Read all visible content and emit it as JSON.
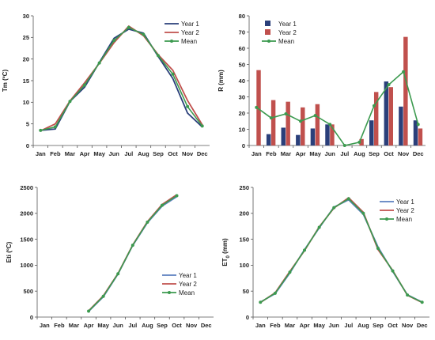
{
  "months": [
    "Jan",
    "Feb",
    "Mar",
    "Apr",
    "May",
    "Jun",
    "Jul",
    "Aug",
    "Sep",
    "Oct",
    "Nov",
    "Dec"
  ],
  "colors": {
    "year1": "#2a3f7a",
    "year2": "#c0504d",
    "mean": "#3c9a4f",
    "year1_light": "#5b7fbf"
  },
  "chart_data": [
    {
      "id": "tm",
      "type": "line",
      "ylabel": "Tm (ºC)",
      "ylim": [
        0,
        30
      ],
      "yticks": [
        0,
        5,
        10,
        15,
        20,
        25,
        30
      ],
      "grid": false,
      "legend": "top-right",
      "categories": [
        "Jan",
        "Feb",
        "Mar",
        "Apr",
        "May",
        "Jun",
        "Jul",
        "Aug",
        "Sep",
        "Oct",
        "Nov",
        "Dec"
      ],
      "series": [
        {
          "name": "Year 1",
          "values": [
            3.5,
            3.8,
            10.2,
            13.5,
            19.2,
            24.8,
            26.9,
            26.0,
            20.6,
            15.5,
            7.5,
            4.3
          ]
        },
        {
          "name": "Year 2",
          "values": [
            3.4,
            5.0,
            10.3,
            14.5,
            19.0,
            23.8,
            27.6,
            25.4,
            21.0,
            17.4,
            10.4,
            4.8
          ]
        },
        {
          "name": "Mean",
          "values": [
            3.5,
            4.3,
            10.2,
            14.0,
            19.1,
            24.3,
            27.3,
            25.7,
            20.8,
            16.5,
            9.0,
            4.5
          ]
        }
      ]
    },
    {
      "id": "rain",
      "type": "bar",
      "ylabel": "R (mm)",
      "ylim": [
        0,
        80
      ],
      "yticks": [
        0,
        10,
        20,
        30,
        40,
        50,
        60,
        70,
        80
      ],
      "grid": false,
      "legend": "top-left",
      "categories": [
        "Jan",
        "Feb",
        "Mar",
        "Apr",
        "May",
        "Jun",
        "Jul",
        "Aug",
        "Sep",
        "Oct",
        "Nov",
        "Dec"
      ],
      "series": [
        {
          "name": "Year 1",
          "kind": "bar",
          "values": [
            0,
            7,
            11,
            6.5,
            10.5,
            13,
            0,
            0,
            15.5,
            39.5,
            24,
            15.5
          ]
        },
        {
          "name": "Year 2",
          "kind": "bar",
          "values": [
            46.5,
            28,
            27,
            23.5,
            25.5,
            13,
            0,
            4,
            33,
            36,
            67,
            10.5
          ]
        },
        {
          "name": "Mean",
          "kind": "line",
          "values": [
            23.5,
            17,
            19.5,
            15,
            18.5,
            13,
            0,
            2,
            24.5,
            37.5,
            45.5,
            13
          ]
        }
      ]
    },
    {
      "id": "eti",
      "type": "line",
      "ylabel": "Eti (ºC)",
      "ylim": [
        0,
        2500
      ],
      "yticks": [
        0,
        500,
        1000,
        1500,
        2000,
        2500
      ],
      "grid": false,
      "legend": "bottom-right",
      "categories": [
        "Jan",
        "Feb",
        "Mar",
        "Apr",
        "May",
        "Jun",
        "Jul",
        "Aug",
        "Sep",
        "Oct",
        "Nov",
        "Dec"
      ],
      "series": [
        {
          "name": "Year 1",
          "values": [
            null,
            null,
            null,
            110,
            390,
            830,
            1380,
            1820,
            2140,
            2320,
            null,
            null
          ]
        },
        {
          "name": "Year 2",
          "values": [
            null,
            null,
            null,
            120,
            410,
            840,
            1390,
            1840,
            2170,
            2360,
            null,
            null
          ]
        },
        {
          "name": "Mean",
          "values": [
            null,
            null,
            null,
            115,
            400,
            835,
            1385,
            1830,
            2155,
            2340,
            null,
            null
          ]
        }
      ]
    },
    {
      "id": "et0",
      "type": "line",
      "ylabel": "ET",
      "ylabel_sub": "0",
      "ylabel_unit": " (mm)",
      "ylim": [
        0,
        250
      ],
      "yticks": [
        0,
        50,
        100,
        150,
        200,
        250
      ],
      "grid": false,
      "legend": "top-right",
      "categories": [
        "Jan",
        "Feb",
        "Mar",
        "Apr",
        "May",
        "Jun",
        "Jul",
        "Aug",
        "Sep",
        "Oct",
        "Nov",
        "Dec"
      ],
      "series": [
        {
          "name": "Year 1",
          "values": [
            29,
            45,
            85,
            130,
            172,
            212,
            226,
            198,
            135,
            88,
            43,
            29
          ]
        },
        {
          "name": "Year 2",
          "values": [
            28,
            47,
            88,
            128,
            174,
            210,
            230,
            202,
            130,
            90,
            42,
            28
          ]
        },
        {
          "name": "Mean",
          "values": [
            28.5,
            46,
            86.5,
            129,
            173,
            211,
            228,
            200,
            132.5,
            89,
            42.5,
            28.5
          ]
        }
      ]
    }
  ]
}
